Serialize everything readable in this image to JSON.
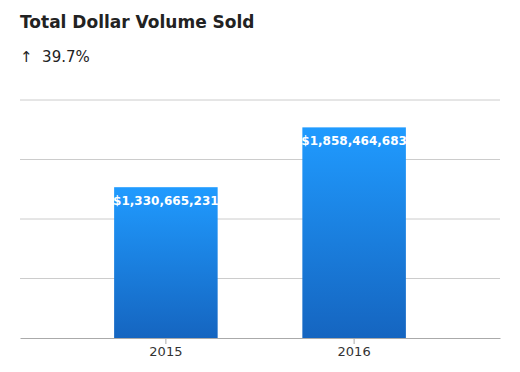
{
  "chart_data": {
    "type": "bar",
    "title": "Total Dollar Volume Sold",
    "subtitle": "↑  39.7%",
    "categories": [
      "2015",
      "2016"
    ],
    "values": [
      1330665231,
      1858464683
    ],
    "value_labels": [
      "$1,330,665,231",
      "$1,858,464,683"
    ],
    "data_labels": true,
    "color": "#1565c0",
    "ylim": [
      0,
      2100000000
    ],
    "yticks": [
      525000000,
      1050000000,
      1575000000,
      2100000000
    ],
    "grid": true,
    "tick_labels": "x"
  }
}
